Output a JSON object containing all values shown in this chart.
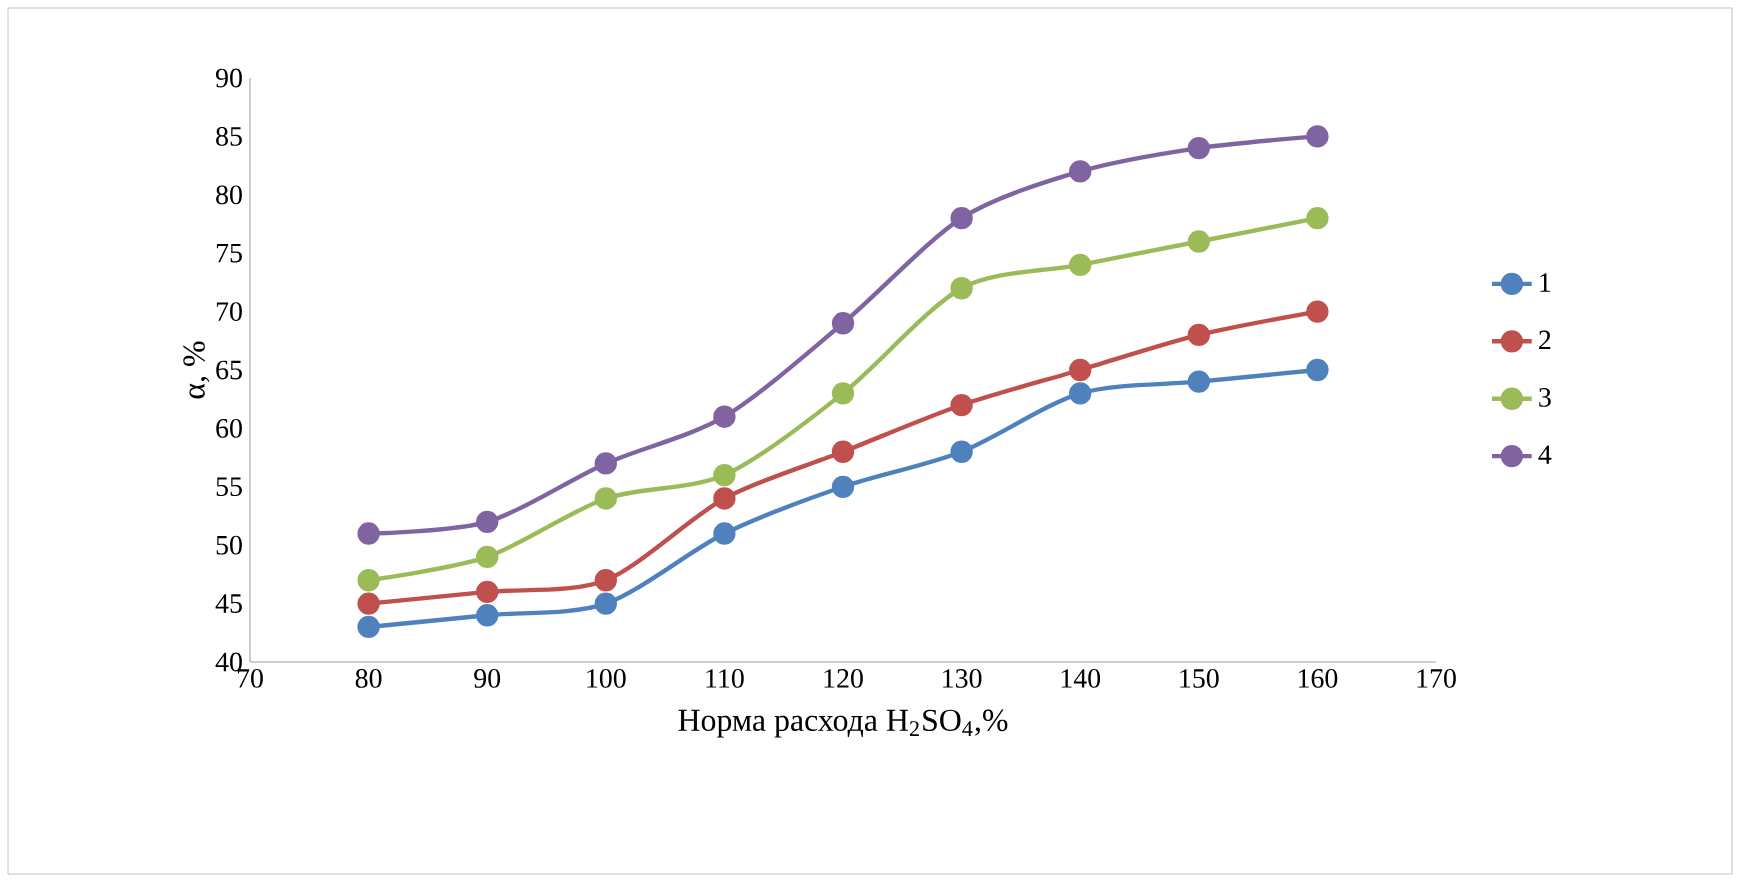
{
  "chart_data": {
    "type": "line",
    "xlabel": "Норма расхода H$_{2}$SO$_{4}$,%",
    "ylabel": "α, %",
    "x": [
      80,
      90,
      100,
      110,
      120,
      130,
      140,
      150,
      160
    ],
    "series": [
      {
        "name": "1",
        "color": "#4f81bd",
        "values": [
          43,
          44,
          45,
          51,
          55,
          58,
          63,
          64,
          65
        ]
      },
      {
        "name": "2",
        "color": "#c0504d",
        "values": [
          45,
          46,
          47,
          54,
          58,
          62,
          65,
          68,
          70
        ]
      },
      {
        "name": "3",
        "color": "#9bbb59",
        "values": [
          47,
          49,
          54,
          56,
          63,
          72,
          74,
          76,
          78
        ]
      },
      {
        "name": "4",
        "color": "#8064a2",
        "values": [
          51,
          52,
          57,
          61,
          69,
          78,
          82,
          84,
          85
        ]
      }
    ],
    "xlim": [
      70,
      170
    ],
    "xticks": [
      70,
      80,
      90,
      100,
      110,
      120,
      130,
      140,
      150,
      160,
      170
    ],
    "ylim": [
      40,
      90
    ],
    "yticks": [
      40,
      45,
      50,
      55,
      60,
      65,
      70,
      75,
      80,
      85,
      90
    ],
    "grid": false,
    "legend": "right",
    "marker": "circle",
    "line_style": "solid"
  }
}
